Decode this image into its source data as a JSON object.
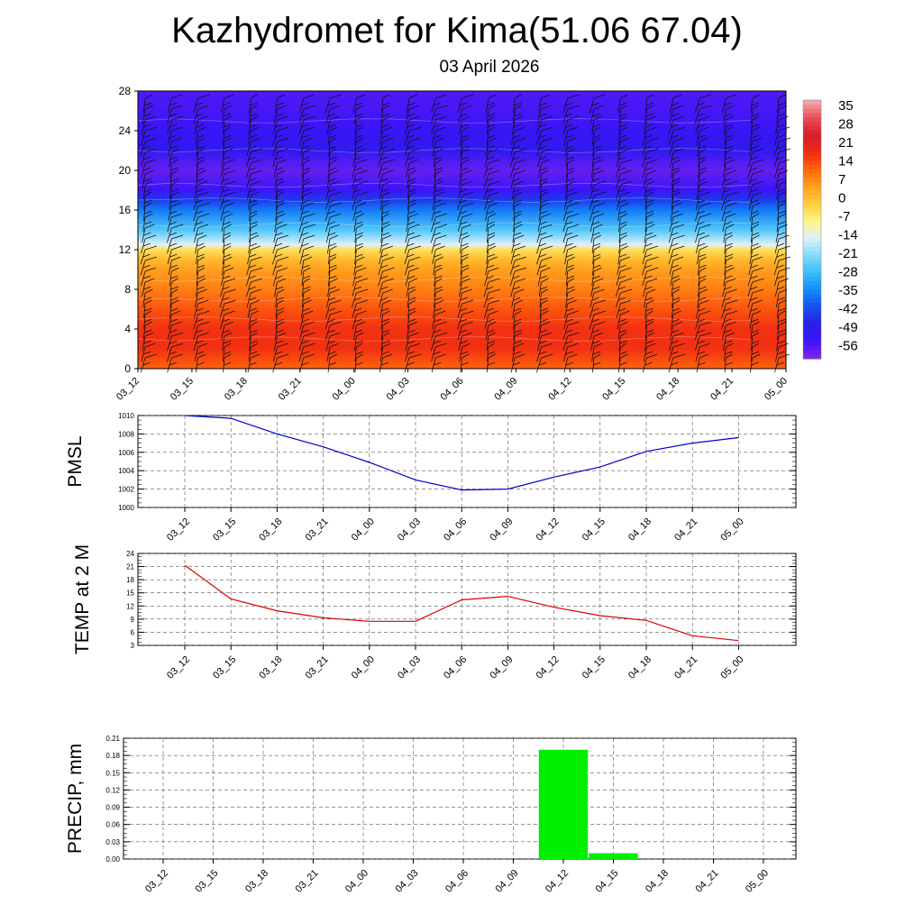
{
  "title": "Kazhydromet for Kima(51.06 67.04)",
  "subtitle": "03 April 2026",
  "colors": {
    "pmsl_line": "#0000cc",
    "temp_line": "#dd0000",
    "precip_bar": "#00ee00",
    "grid": "#555555"
  },
  "chart_data": [
    {
      "type": "heatmap",
      "name": "cross-section temperature with wind barbs",
      "x_categories": [
        "03_12",
        "03_15",
        "03_18",
        "03_21",
        "04_00",
        "04_03",
        "04_06",
        "04_09",
        "04_12",
        "04_15",
        "04_18",
        "04_21",
        "05_00"
      ],
      "y_ticks": [
        "0",
        "4",
        "8",
        "12",
        "16",
        "20",
        "24",
        "28"
      ],
      "ylim": [
        0,
        28
      ],
      "colorbar_labels": [
        "35",
        "28",
        "21",
        "14",
        "7",
        "0",
        "-7",
        "-14",
        "-21",
        "-28",
        "-35",
        "-42",
        "-49",
        "-56"
      ],
      "colorbar_range": [
        -63,
        42
      ],
      "profile_levels": [
        0,
        2,
        4,
        6,
        8,
        10,
        11,
        12,
        12.5,
        14,
        16,
        17,
        18,
        19,
        20,
        21,
        22,
        24,
        26,
        28
      ],
      "temperature_profile": [
        14,
        20,
        20,
        16,
        11,
        7,
        3,
        -3,
        -14,
        -26,
        -37,
        -45,
        -56,
        -58,
        -60,
        -58,
        -52,
        -55,
        -57,
        -58
      ]
    },
    {
      "type": "line",
      "name": "PMSL",
      "ylabel": "PMSL",
      "categories": [
        "03_12",
        "03_15",
        "03_18",
        "03_21",
        "04_00",
        "04_03",
        "04_06",
        "04_09",
        "04_12",
        "04_15",
        "04_18",
        "04_21",
        "05_00"
      ],
      "values": [
        1010,
        1009.7,
        1008,
        1006.6,
        1004.9,
        1003,
        1001.9,
        1002,
        1003.3,
        1004.4,
        1006.1,
        1007,
        1007.6
      ],
      "y_ticks": [
        "1000",
        "1002",
        "1004",
        "1006",
        "1008",
        "1010"
      ],
      "ylim": [
        1000,
        1010
      ]
    },
    {
      "type": "line",
      "name": "TEMP at 2 M",
      "ylabel": "TEMP at 2 M",
      "categories": [
        "03_12",
        "03_15",
        "03_18",
        "03_21",
        "04_00",
        "04_03",
        "04_06",
        "04_09",
        "04_12",
        "04_15",
        "04_18",
        "04_21",
        "05_00"
      ],
      "values": [
        21.3,
        13.6,
        10.9,
        9.3,
        8.5,
        8.5,
        13.4,
        14.2,
        11.7,
        9.8,
        8.7,
        5.2,
        4.1
      ],
      "y_ticks": [
        "3",
        "6",
        "9",
        "12",
        "15",
        "18",
        "21",
        "24"
      ],
      "ylim": [
        3,
        24
      ]
    },
    {
      "type": "bar",
      "name": "PRECIP",
      "ylabel": "PRECIP, mm",
      "categories": [
        "03_12",
        "03_15",
        "03_18",
        "03_21",
        "04_00",
        "04_03",
        "04_06",
        "04_09",
        "04_12",
        "04_15",
        "04_18",
        "04_21",
        "05_00"
      ],
      "values": [
        0,
        0,
        0,
        0,
        0,
        0,
        0,
        0,
        0.19,
        0.01,
        0,
        0,
        0
      ],
      "y_ticks": [
        "0.00",
        "0.03",
        "0.06",
        "0.09",
        "0.12",
        "0.15",
        "0.18",
        "0.21"
      ],
      "ylim": [
        0,
        0.21
      ]
    }
  ]
}
